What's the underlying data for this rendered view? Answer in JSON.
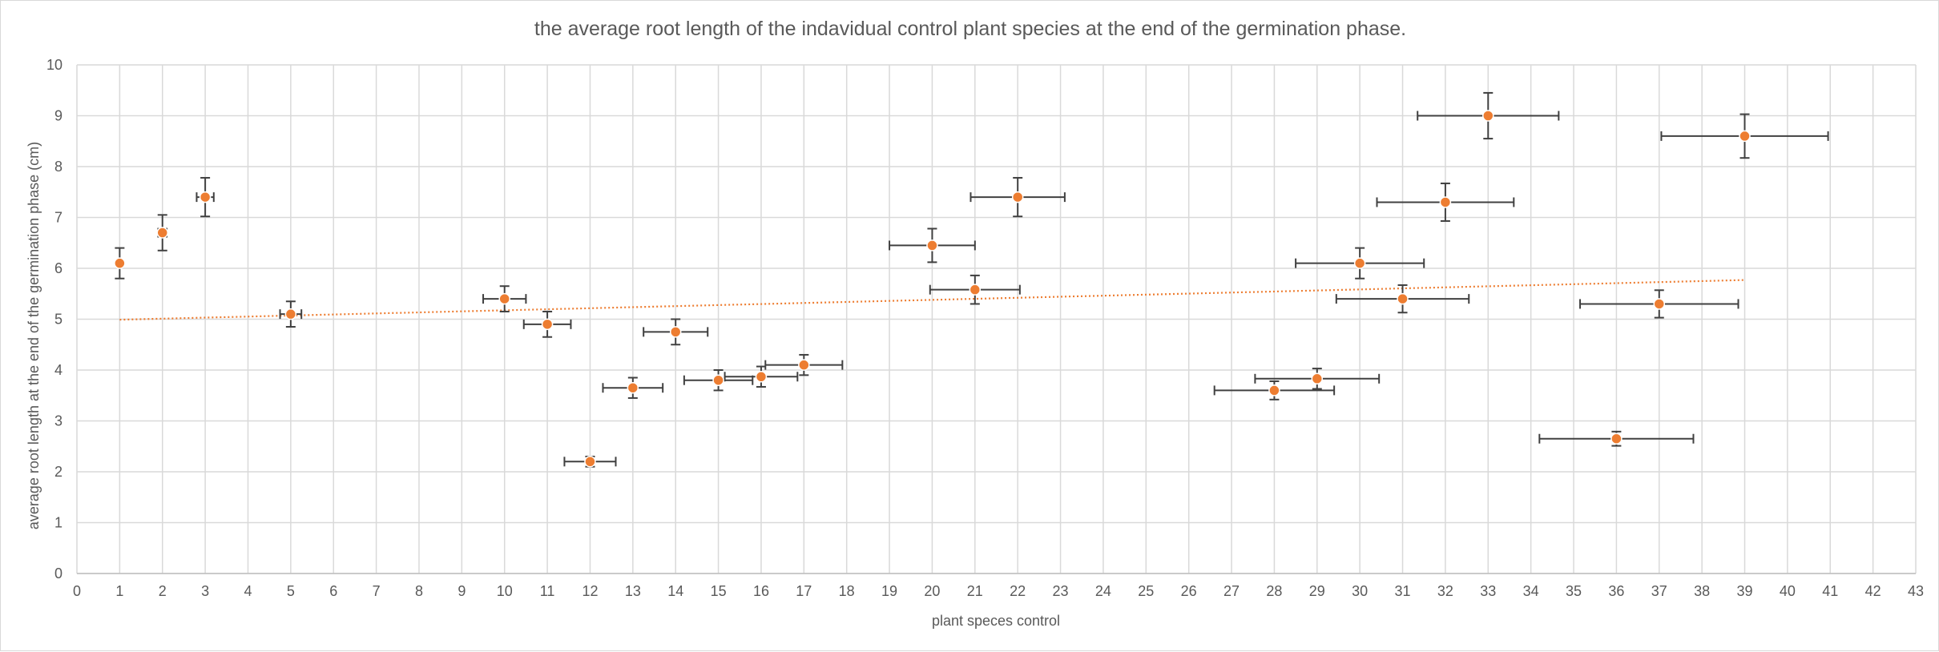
{
  "chart_data": {
    "type": "scatter",
    "title": "the average root length of the indavidual control plant species at the end of the germination phase.",
    "xlabel": "plant speces control",
    "ylabel": "average root length at the end of the germination phase (cm)",
    "xlim": [
      0,
      43
    ],
    "ylim": [
      0,
      10
    ],
    "xticks": [
      0,
      1,
      2,
      3,
      4,
      5,
      6,
      7,
      8,
      9,
      10,
      11,
      12,
      13,
      14,
      15,
      16,
      17,
      18,
      19,
      20,
      21,
      22,
      23,
      24,
      25,
      26,
      27,
      28,
      29,
      30,
      31,
      32,
      33,
      34,
      35,
      36,
      37,
      38,
      39,
      40,
      41,
      42,
      43
    ],
    "yticks": [
      0,
      1,
      2,
      3,
      4,
      5,
      6,
      7,
      8,
      9,
      10
    ],
    "grid": true,
    "legend": "none",
    "series": [
      {
        "points": [
          {
            "x": 1,
            "y": 6.1,
            "yerr": 0.3,
            "xerr": 0
          },
          {
            "x": 2,
            "y": 6.7,
            "yerr": 0.35,
            "xerr": 0.1
          },
          {
            "x": 3,
            "y": 7.4,
            "yerr": 0.38,
            "xerr": 0.2
          },
          {
            "x": 5,
            "y": 5.1,
            "yerr": 0.25,
            "xerr": 0.25
          },
          {
            "x": 10,
            "y": 5.4,
            "yerr": 0.25,
            "xerr": 0.5
          },
          {
            "x": 11,
            "y": 4.9,
            "yerr": 0.25,
            "xerr": 0.55
          },
          {
            "x": 12,
            "y": 2.2,
            "yerr": 0.1,
            "xerr": 0.6
          },
          {
            "x": 13,
            "y": 3.65,
            "yerr": 0.2,
            "xerr": 0.7
          },
          {
            "x": 14,
            "y": 4.75,
            "yerr": 0.25,
            "xerr": 0.75
          },
          {
            "x": 15,
            "y": 3.8,
            "yerr": 0.2,
            "xerr": 0.8
          },
          {
            "x": 16,
            "y": 3.87,
            "yerr": 0.2,
            "xerr": 0.85
          },
          {
            "x": 17,
            "y": 4.1,
            "yerr": 0.2,
            "xerr": 0.9
          },
          {
            "x": 20,
            "y": 6.45,
            "yerr": 0.33,
            "xerr": 1.0
          },
          {
            "x": 21,
            "y": 5.58,
            "yerr": 0.28,
            "xerr": 1.05
          },
          {
            "x": 22,
            "y": 7.4,
            "yerr": 0.38,
            "xerr": 1.1
          },
          {
            "x": 28,
            "y": 3.6,
            "yerr": 0.18,
            "xerr": 1.4
          },
          {
            "x": 29,
            "y": 3.83,
            "yerr": 0.2,
            "xerr": 1.45
          },
          {
            "x": 30,
            "y": 6.1,
            "yerr": 0.3,
            "xerr": 1.5
          },
          {
            "x": 31,
            "y": 5.4,
            "yerr": 0.27,
            "xerr": 1.55
          },
          {
            "x": 32,
            "y": 7.3,
            "yerr": 0.37,
            "xerr": 1.6
          },
          {
            "x": 33,
            "y": 9.0,
            "yerr": 0.45,
            "xerr": 1.65
          },
          {
            "x": 36,
            "y": 2.65,
            "yerr": 0.14,
            "xerr": 1.8
          },
          {
            "x": 37,
            "y": 5.3,
            "yerr": 0.27,
            "xerr": 1.85
          },
          {
            "x": 39,
            "y": 8.6,
            "yerr": 0.43,
            "xerr": 1.95
          }
        ]
      }
    ],
    "trendline": {
      "type": "linear",
      "x": [
        1,
        39
      ],
      "y": [
        4.99,
        5.77
      ]
    },
    "colors": {
      "marker": "#ed7d31",
      "error_bar": "#404040",
      "grid": "#d9d9d9",
      "text": "#595959"
    }
  }
}
